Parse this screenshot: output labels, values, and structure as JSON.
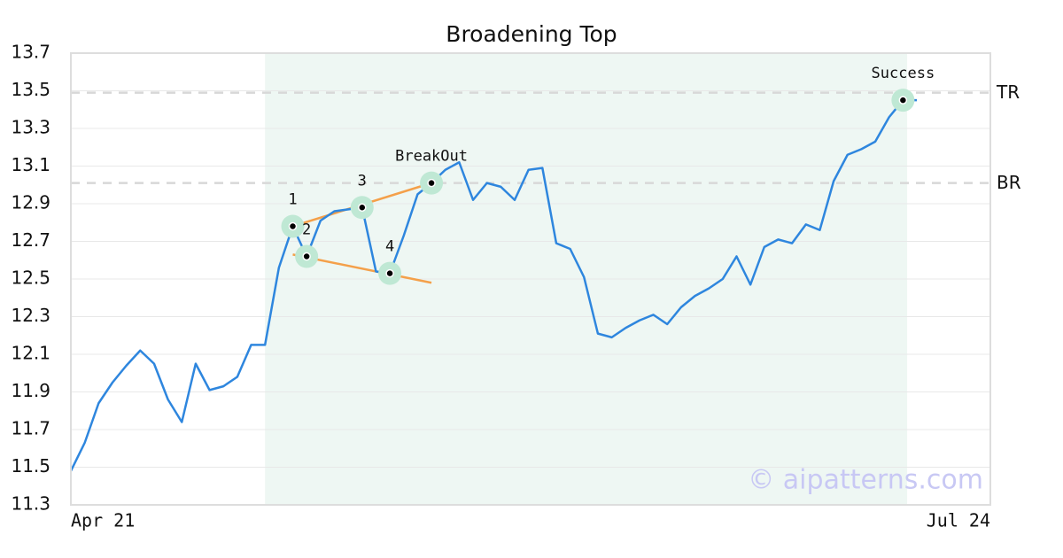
{
  "chart_data": {
    "type": "line",
    "title": "Broadening Top",
    "x_axis_labels": [
      "Apr 21",
      "Jul 24"
    ],
    "xlim": [
      0,
      66.3
    ],
    "ylim": [
      11.3,
      13.7
    ],
    "yticks": [
      11.3,
      11.5,
      11.7,
      11.9,
      12.1,
      12.3,
      12.5,
      12.7,
      12.9,
      13.1,
      13.3,
      13.5,
      13.7
    ],
    "grid": true,
    "series": [
      {
        "color": "#2e86de",
        "values": [
          11.48,
          11.63,
          11.84,
          11.95,
          12.04,
          12.12,
          12.05,
          11.86,
          11.74,
          12.05,
          11.91,
          11.93,
          11.98,
          12.15,
          12.15,
          12.56,
          12.78,
          12.62,
          12.81,
          12.86,
          12.87,
          12.88,
          12.54,
          12.53,
          12.73,
          12.95,
          13.01,
          13.08,
          13.12,
          12.92,
          13.01,
          12.99,
          12.92,
          13.08,
          13.09,
          12.69,
          12.66,
          12.51,
          12.21,
          12.19,
          12.24,
          12.28,
          12.31,
          12.26,
          12.35,
          12.41,
          12.45,
          12.5,
          12.62,
          12.47,
          12.67,
          12.71,
          12.69,
          12.79,
          12.76,
          13.02,
          13.16,
          13.19,
          13.23,
          13.36,
          13.45,
          13.45
        ]
      }
    ],
    "highlight_range": [
      14,
      60.3
    ],
    "highlight_color": "#eef7f3",
    "levels": [
      {
        "label": "TR",
        "value": 13.49
      },
      {
        "label": "BR",
        "value": 13.01
      }
    ],
    "trend_lines": [
      {
        "color": "#f4a04a",
        "x": [
          16,
          26
        ],
        "y": [
          12.78,
          13.01
        ]
      },
      {
        "color": "#f4a04a",
        "x": [
          16,
          26
        ],
        "y": [
          12.63,
          12.48
        ]
      }
    ],
    "pattern_points": [
      {
        "label": "1",
        "x": 16,
        "y": 12.78
      },
      {
        "label": "2",
        "x": 17,
        "y": 12.62
      },
      {
        "label": "3",
        "x": 21,
        "y": 12.88
      },
      {
        "label": "4",
        "x": 23,
        "y": 12.53
      },
      {
        "label": "BreakOut",
        "x": 26,
        "y": 13.01
      },
      {
        "label": "Success",
        "x": 60,
        "y": 13.45
      }
    ],
    "watermark": "© aipatterns.com"
  }
}
